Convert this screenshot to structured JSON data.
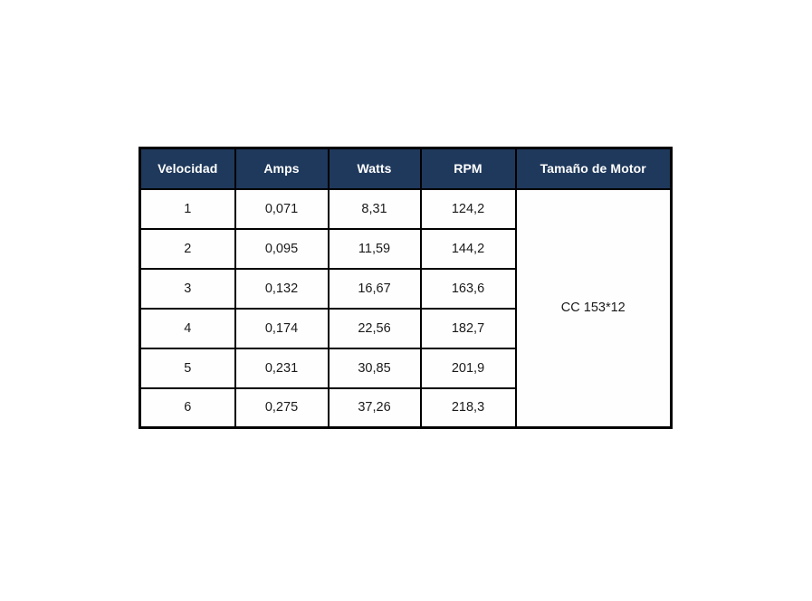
{
  "table": {
    "headers": [
      "Velocidad",
      "Amps",
      "Watts",
      "RPM",
      "Tamaño de Motor"
    ],
    "rows": [
      [
        "1",
        "0,071",
        "8,31",
        "124,2"
      ],
      [
        "2",
        "0,095",
        "11,59",
        "144,2"
      ],
      [
        "3",
        "0,132",
        "16,67",
        "163,6"
      ],
      [
        "4",
        "0,174",
        "22,56",
        "182,7"
      ],
      [
        "5",
        "0,231",
        "30,85",
        "201,9"
      ],
      [
        "6",
        "0,275",
        "37,26",
        "218,3"
      ]
    ],
    "motor_size": "CC 153*12",
    "colors": {
      "header_bg": "#1F395C",
      "header_text": "#FFFFFF",
      "border": "#000000",
      "cell_bg": "#FEFEFE"
    }
  }
}
